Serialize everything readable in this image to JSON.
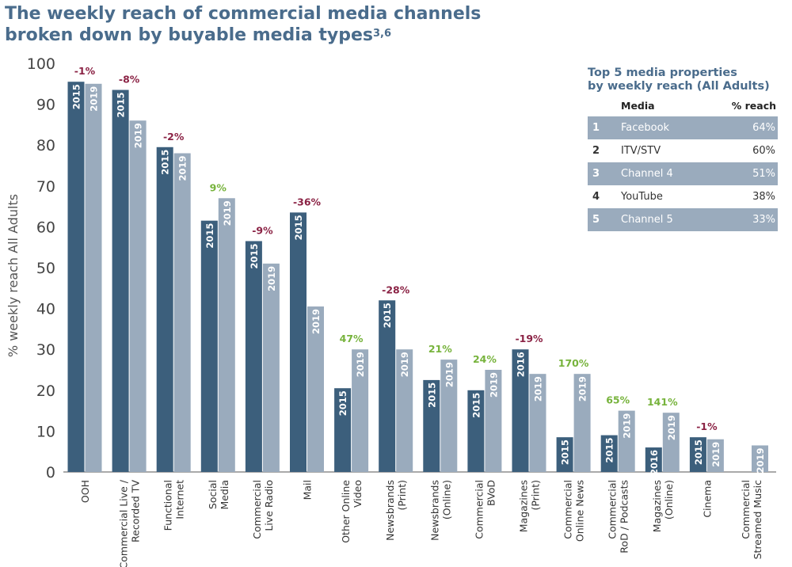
{
  "title": {
    "line1": "The weekly reach of commercial media channels",
    "line2": "broken down by buyable media types",
    "footnote": "3,6"
  },
  "chart_data": {
    "type": "bar",
    "ylabel": "% weekly reach All Adults",
    "ylim": [
      0,
      100
    ],
    "yticks": [
      0,
      10,
      20,
      30,
      40,
      50,
      60,
      70,
      80,
      90,
      100
    ],
    "colors": {
      "early": "#3c5f7c",
      "late": "#9aabbd",
      "negative": "#8b2345",
      "positive": "#77b33c"
    },
    "categories": [
      {
        "label": [
          "OOH"
        ],
        "early_year": "2015",
        "early": 95.5,
        "late_year": "2019",
        "late": 95,
        "change": "-1%"
      },
      {
        "label": [
          "Commercial Live /",
          "Recorded TV"
        ],
        "early_year": "2015",
        "early": 93.5,
        "late_year": "2019",
        "late": 86,
        "change": "-8%"
      },
      {
        "label": [
          "Functional",
          "Internet"
        ],
        "early_year": "2015",
        "early": 79.5,
        "late_year": "2019",
        "late": 78,
        "change": "-2%"
      },
      {
        "label": [
          "Social",
          "Media"
        ],
        "early_year": "2015",
        "early": 61.5,
        "late_year": "2019",
        "late": 67,
        "change": "9%"
      },
      {
        "label": [
          "Commercial",
          "Live Radio"
        ],
        "early_year": "2015",
        "early": 56.5,
        "late_year": "2019",
        "late": 51,
        "change": "-9%"
      },
      {
        "label": [
          "Mail"
        ],
        "early_year": "2015",
        "early": 63.5,
        "late_year": "2019",
        "late": 40.5,
        "change": "-36%"
      },
      {
        "label": [
          "Other Online",
          "Video"
        ],
        "early_year": "2015",
        "early": 20.5,
        "late_year": "2019",
        "late": 30,
        "change": "47%"
      },
      {
        "label": [
          "Newsbrands",
          "(Print)"
        ],
        "early_year": "2015",
        "early": 42,
        "late_year": "2019",
        "late": 30,
        "change": "-28%"
      },
      {
        "label": [
          "Newsbrands",
          "(Online)"
        ],
        "early_year": "2015",
        "early": 22.5,
        "late_year": "2019",
        "late": 27.5,
        "change": "21%"
      },
      {
        "label": [
          "Commercial",
          "BVoD"
        ],
        "early_year": "2015",
        "early": 20,
        "late_year": "2019",
        "late": 25,
        "change": "24%"
      },
      {
        "label": [
          "Magazines",
          "(Print)"
        ],
        "early_year": "2016",
        "early": 30,
        "late_year": "2019",
        "late": 24,
        "change": "-19%"
      },
      {
        "label": [
          "Commercial",
          "Online News"
        ],
        "early_year": "2015",
        "early": 8.5,
        "late_year": "2019",
        "late": 24,
        "change": "170%"
      },
      {
        "label": [
          "Commercial",
          "RoD / Podcasts"
        ],
        "early_year": "2015",
        "early": 9,
        "late_year": "2019",
        "late": 15,
        "change": "65%"
      },
      {
        "label": [
          "Magazines",
          "(Online)"
        ],
        "early_year": "2016",
        "early": 6,
        "late_year": "2019",
        "late": 14.5,
        "change": "141%"
      },
      {
        "label": [
          "Cinema"
        ],
        "early_year": "2015",
        "early": 8.5,
        "late_year": "2019",
        "late": 8,
        "change": "-1%"
      },
      {
        "label": [
          "Commercial",
          "Streamed Music"
        ],
        "early_year": "",
        "early": null,
        "late_year": "2019",
        "late": 6.5,
        "change": ""
      }
    ]
  },
  "top5": {
    "title_line1": "Top 5 media properties",
    "title_line2": "by weekly reach (All Adults)",
    "col_media": "Media",
    "col_reach": "% reach",
    "rows": [
      {
        "rank": "1",
        "media": "Facebook",
        "reach": "64%"
      },
      {
        "rank": "2",
        "media": "ITV/STV",
        "reach": "60%"
      },
      {
        "rank": "3",
        "media": "Channel 4",
        "reach": "51%"
      },
      {
        "rank": "4",
        "media": "YouTube",
        "reach": "38%"
      },
      {
        "rank": "5",
        "media": "Channel 5",
        "reach": "33%"
      }
    ]
  }
}
